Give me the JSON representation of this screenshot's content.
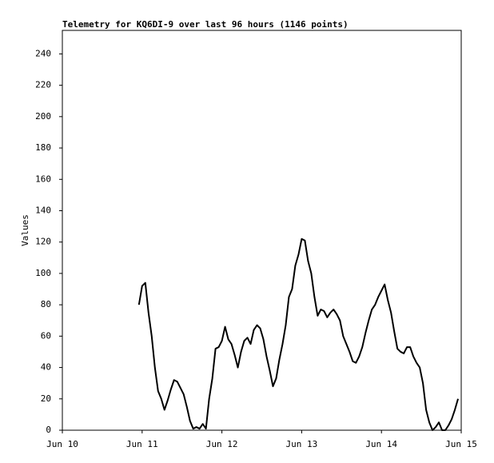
{
  "chart_data": {
    "type": "line",
    "title": "Telemetry for KQ6DI-9 over last 96 hours (1146 points)",
    "y_label": "Values",
    "color": "#000000",
    "xlim": [
      10,
      15
    ],
    "xticks": [
      {
        "value": 10,
        "label": "Jun 10"
      },
      {
        "value": 11,
        "label": "Jun 11"
      },
      {
        "value": 12,
        "label": "Jun 12"
      },
      {
        "value": 13,
        "label": "Jun 13"
      },
      {
        "value": 14,
        "label": "Jun 14"
      },
      {
        "value": 15,
        "label": "Jun 15"
      }
    ],
    "ylim": [
      0,
      255
    ],
    "yticks": [
      0,
      20,
      40,
      60,
      80,
      100,
      120,
      140,
      160,
      180,
      200,
      220,
      240
    ],
    "grid": false,
    "x": [
      10.96,
      11,
      11.04,
      11.08,
      11.12,
      11.16,
      11.2,
      11.24,
      11.28,
      11.32,
      11.36,
      11.4,
      11.44,
      11.48,
      11.52,
      11.56,
      11.6,
      11.64,
      11.68,
      11.72,
      11.76,
      11.8,
      11.84,
      11.88,
      11.92,
      11.96,
      12,
      12.04,
      12.08,
      12.12,
      12.16,
      12.2,
      12.24,
      12.28,
      12.32,
      12.36,
      12.4,
      12.44,
      12.48,
      12.52,
      12.56,
      12.6,
      12.64,
      12.68,
      12.72,
      12.76,
      12.8,
      12.84,
      12.88,
      12.92,
      12.96,
      13,
      13.04,
      13.08,
      13.12,
      13.16,
      13.2,
      13.24,
      13.28,
      13.32,
      13.36,
      13.4,
      13.44,
      13.48,
      13.52,
      13.56,
      13.6,
      13.64,
      13.68,
      13.72,
      13.76,
      13.8,
      13.84,
      13.88,
      13.92,
      13.96,
      14,
      14.04,
      14.08,
      14.12,
      14.16,
      14.2,
      14.24,
      14.28,
      14.32,
      14.36,
      14.4,
      14.44,
      14.48,
      14.52,
      14.56,
      14.6,
      14.64,
      14.68,
      14.72,
      14.76,
      14.8,
      14.84,
      14.88,
      14.92,
      14.96
    ],
    "values": [
      80,
      92,
      94,
      75,
      60,
      40,
      25,
      20,
      13,
      19,
      26,
      32,
      31,
      27,
      23,
      15,
      6,
      1,
      2,
      1,
      4,
      1,
      20,
      33,
      52,
      53,
      57,
      66,
      58,
      55,
      48,
      40,
      50,
      57,
      59,
      55,
      64,
      67,
      65,
      58,
      47,
      38,
      28,
      33,
      45,
      55,
      67,
      85,
      90,
      105,
      112,
      122,
      121,
      108,
      100,
      85,
      73,
      77,
      76,
      72,
      75,
      77,
      74,
      70,
      60,
      55,
      50,
      44,
      43,
      47,
      53,
      62,
      70,
      77,
      80,
      85,
      89,
      93,
      83,
      75,
      63,
      52,
      50,
      49,
      53,
      53,
      47,
      43,
      40,
      30,
      13,
      5,
      0,
      2,
      5,
      0,
      0,
      3,
      7,
      13,
      20
    ]
  }
}
